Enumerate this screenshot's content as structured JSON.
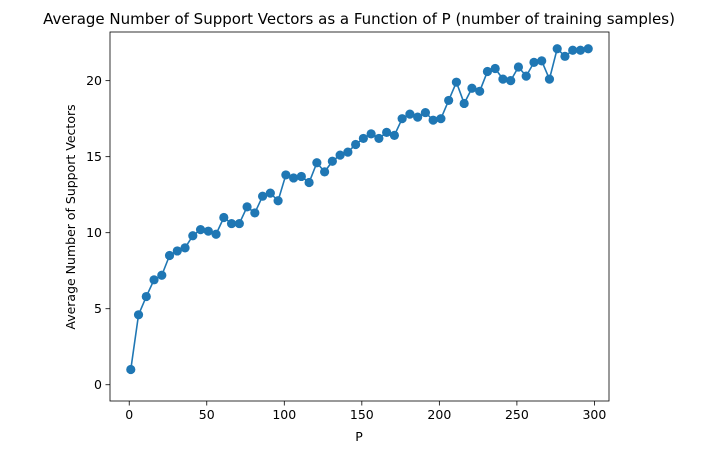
{
  "chart_data": {
    "type": "line",
    "title": "Average Number of Support Vectors as a Function of P (number of training samples)",
    "xlabel": "P",
    "ylabel": "Average Number of Support Vectors",
    "xlim": [
      -12.4,
      309.4
    ],
    "ylim": [
      -1.07,
      23.2
    ],
    "xticks": [
      0,
      50,
      100,
      150,
      200,
      250,
      300
    ],
    "yticks": [
      0,
      5,
      10,
      15,
      20
    ],
    "grid": false,
    "legend": false,
    "marker": "circle",
    "color": "#1f77b4",
    "series": [
      {
        "x": [
          1,
          6,
          11,
          16,
          21,
          26,
          31,
          36,
          41,
          46,
          51,
          56,
          61,
          66,
          71,
          76,
          81,
          86,
          91,
          96,
          101,
          106,
          111,
          116,
          121,
          126,
          131,
          136,
          141,
          146,
          151,
          156,
          161,
          166,
          171,
          176,
          181,
          186,
          191,
          196,
          201,
          206,
          211,
          216,
          221,
          226,
          231,
          236,
          241,
          246,
          251,
          256,
          261,
          266,
          271,
          276,
          281,
          286,
          291,
          296
        ],
        "y": [
          1.0,
          4.6,
          5.8,
          6.9,
          7.2,
          8.5,
          8.8,
          9.0,
          9.8,
          10.2,
          10.1,
          9.9,
          11.0,
          10.6,
          10.6,
          11.7,
          11.3,
          12.4,
          12.6,
          12.1,
          13.8,
          13.6,
          13.7,
          13.3,
          14.6,
          14.0,
          14.7,
          15.1,
          15.3,
          15.8,
          16.2,
          16.5,
          16.2,
          16.6,
          16.4,
          17.5,
          17.8,
          17.6,
          17.9,
          17.4,
          17.5,
          18.7,
          19.9,
          18.5,
          19.5,
          19.3,
          20.6,
          20.8,
          20.1,
          20.0,
          20.9,
          20.3,
          21.2,
          21.3,
          20.1,
          22.1,
          21.6,
          22.0,
          22.0,
          22.1
        ]
      }
    ]
  }
}
